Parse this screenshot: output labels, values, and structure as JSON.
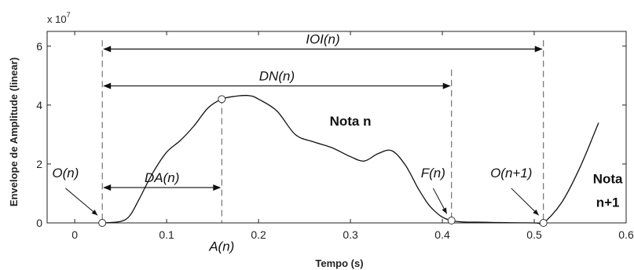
{
  "chart_data": {
    "type": "line",
    "xlabel": "Tempo (s)",
    "ylabel": "Envelope de Amplitude (linear)",
    "y_multiplier": "x 10",
    "y_multiplier_exp": "7",
    "xlim": [
      -0.03,
      0.6
    ],
    "ylim": [
      0,
      6.5
    ],
    "xticks": [
      "0",
      "0.1",
      "0.2",
      "0.3",
      "0.4",
      "0.5",
      "0.6"
    ],
    "xtick_values": [
      0,
      0.1,
      0.2,
      0.3,
      0.4,
      0.5,
      0.6
    ],
    "yticks": [
      "0",
      "2",
      "4",
      "6"
    ],
    "ytick_values": [
      0,
      2,
      4,
      6
    ],
    "grid": false,
    "series": [
      {
        "x": [
          0.03,
          0.05,
          0.06,
          0.07,
          0.085,
          0.1,
          0.115,
          0.13,
          0.145,
          0.16,
          0.175,
          0.19,
          0.2,
          0.22,
          0.24,
          0.26,
          0.28,
          0.3,
          0.315,
          0.33,
          0.345,
          0.36,
          0.375,
          0.39,
          0.41,
          0.45,
          0.5,
          0.51,
          0.53,
          0.55,
          0.57
        ],
        "y": [
          0,
          0.05,
          0.25,
          0.8,
          1.7,
          2.4,
          2.8,
          3.3,
          3.9,
          4.2,
          4.3,
          4.32,
          4.2,
          3.8,
          3.0,
          2.75,
          2.55,
          2.25,
          2.1,
          2.35,
          2.45,
          1.95,
          1.1,
          0.45,
          0.08,
          0.02,
          0.0,
          0.0,
          0.7,
          1.9,
          3.4
        ]
      }
    ],
    "markers": [
      {
        "x": 0.03,
        "y": 0
      },
      {
        "x": 0.16,
        "y": 4.2
      },
      {
        "x": 0.41,
        "y": 0.08
      },
      {
        "x": 0.51,
        "y": 0
      }
    ],
    "vlines": [
      {
        "x": 0.03,
        "y_top": 6.2
      },
      {
        "x": 0.16,
        "y_top": 4.25
      },
      {
        "x": 0.41,
        "y_top": 5.2
      },
      {
        "x": 0.51,
        "y_top": 6.2
      }
    ],
    "intervals": [
      {
        "x0": 0.03,
        "x1": 0.51,
        "y": 5.9,
        "label": "IOI(n)"
      },
      {
        "x0": 0.03,
        "x1": 0.41,
        "y": 4.65,
        "label": "DN(n)"
      },
      {
        "x0": 0.03,
        "x1": 0.16,
        "y": 1.2,
        "label": "DA(n)"
      }
    ],
    "annotations": [
      {
        "text": "O(n)",
        "style": "italic",
        "x": -0.01,
        "y": 1.55,
        "arrow_to": [
          0.03,
          0.1
        ]
      },
      {
        "text": "A(n)",
        "style": "italic",
        "x": 0.16,
        "y": -0.95
      },
      {
        "text": "F(n)",
        "style": "italic",
        "x": 0.39,
        "y": 1.55,
        "arrow_to": [
          0.41,
          0.15
        ]
      },
      {
        "text": "O(n+1)",
        "style": "italic",
        "x": 0.475,
        "y": 1.55,
        "arrow_to": [
          0.51,
          0.1
        ]
      },
      {
        "text": "Nota n",
        "style": "bold",
        "x": 0.3,
        "y": 3.3
      },
      {
        "text": "Nota",
        "style": "bold",
        "x": 0.58,
        "y": 1.35
      },
      {
        "text": "n+1",
        "style": "bold",
        "x": 0.58,
        "y": 0.55
      }
    ]
  }
}
